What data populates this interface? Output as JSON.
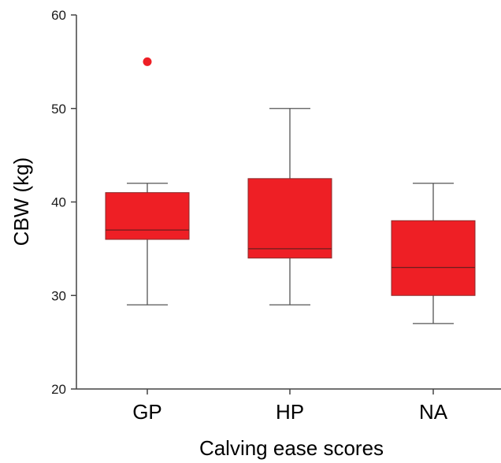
{
  "chart_data": {
    "type": "box",
    "title": "",
    "xlabel": "Calving ease scores",
    "ylabel": "CBW (kg)",
    "ylim": [
      20,
      60
    ],
    "yticks": [
      20,
      30,
      40,
      50,
      60
    ],
    "grid": false,
    "categories": [
      "GP",
      "HP",
      "NA"
    ],
    "boxes": [
      {
        "category": "GP",
        "whisker_low": 29,
        "q1": 36,
        "median": 37,
        "q3": 41,
        "whisker_high": 42,
        "outliers": [
          55
        ]
      },
      {
        "category": "HP",
        "whisker_low": 29,
        "q1": 34,
        "median": 35,
        "q3": 42.5,
        "whisker_high": 50,
        "outliers": []
      },
      {
        "category": "NA",
        "whisker_low": 27,
        "q1": 30,
        "median": 33,
        "q3": 38,
        "whisker_high": 42,
        "outliers": []
      }
    ],
    "colors": {
      "box_fill": "#ee1f25",
      "outlier": "#ee1f25",
      "lines": "#555555",
      "axis": "#444444"
    }
  }
}
